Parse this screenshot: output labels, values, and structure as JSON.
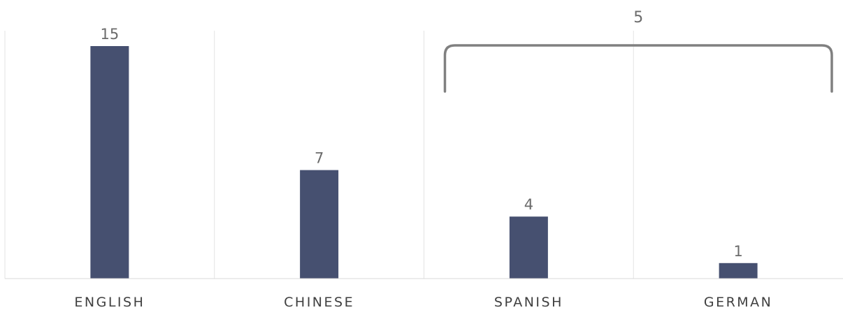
{
  "chart_data": {
    "type": "bar",
    "title": "",
    "xlabel": "",
    "ylabel": "",
    "categories": [
      "ENGLISH",
      "CHINESE",
      "SPANISH",
      "GERMAN"
    ],
    "values": [
      15,
      7,
      4,
      1
    ],
    "ylim": [
      0,
      15
    ],
    "grid": "vertical",
    "bar_color": "#465070",
    "annotation": {
      "type": "bracket",
      "spans": [
        "SPANISH",
        "GERMAN"
      ],
      "label": "5",
      "color": "#808080"
    }
  }
}
